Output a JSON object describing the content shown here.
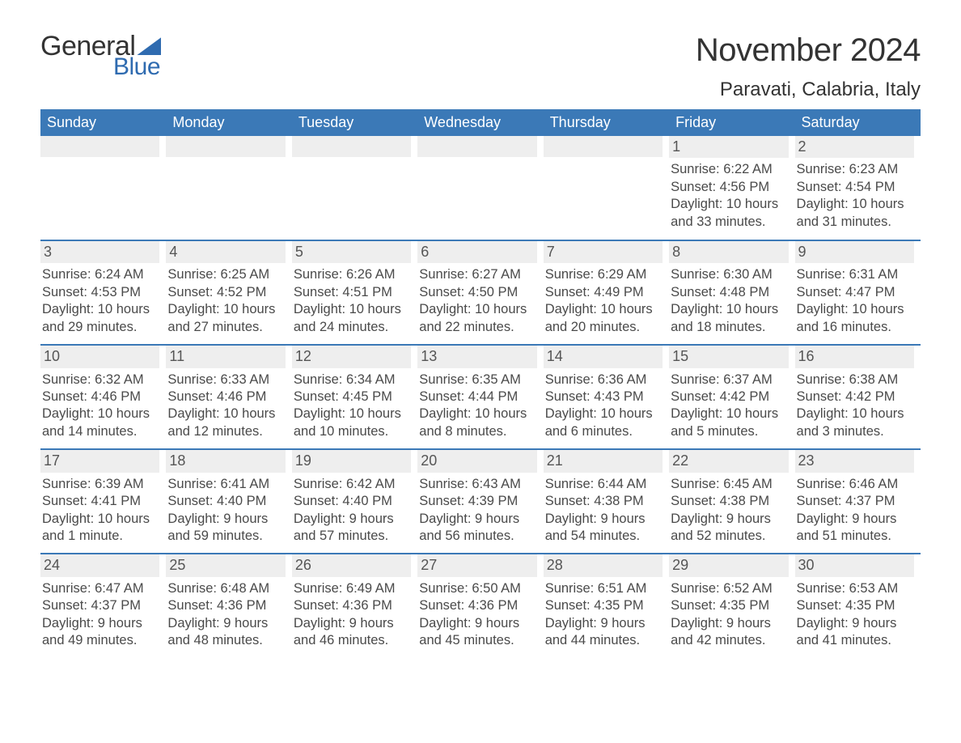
{
  "logo": {
    "word1": "General",
    "word2": "Blue"
  },
  "title": "November 2024",
  "location": "Paravati, Calabria, Italy",
  "colors": {
    "header_bg": "#3b79b7",
    "header_text": "#ffffff",
    "daynum_bg": "#eeeeee",
    "daynum_text": "#555555",
    "body_text": "#4a4a4a",
    "rule": "#3b79b7",
    "logo_blue": "#2f6bb0",
    "page_bg": "#ffffff"
  },
  "day_names": [
    "Sunday",
    "Monday",
    "Tuesday",
    "Wednesday",
    "Thursday",
    "Friday",
    "Saturday"
  ],
  "weeks": [
    [
      {
        "empty": true
      },
      {
        "empty": true
      },
      {
        "empty": true
      },
      {
        "empty": true
      },
      {
        "empty": true
      },
      {
        "day": "1",
        "sunrise": "Sunrise: 6:22 AM",
        "sunset": "Sunset: 4:56 PM",
        "dl1": "Daylight: 10 hours",
        "dl2": "and 33 minutes."
      },
      {
        "day": "2",
        "sunrise": "Sunrise: 6:23 AM",
        "sunset": "Sunset: 4:54 PM",
        "dl1": "Daylight: 10 hours",
        "dl2": "and 31 minutes."
      }
    ],
    [
      {
        "day": "3",
        "sunrise": "Sunrise: 6:24 AM",
        "sunset": "Sunset: 4:53 PM",
        "dl1": "Daylight: 10 hours",
        "dl2": "and 29 minutes."
      },
      {
        "day": "4",
        "sunrise": "Sunrise: 6:25 AM",
        "sunset": "Sunset: 4:52 PM",
        "dl1": "Daylight: 10 hours",
        "dl2": "and 27 minutes."
      },
      {
        "day": "5",
        "sunrise": "Sunrise: 6:26 AM",
        "sunset": "Sunset: 4:51 PM",
        "dl1": "Daylight: 10 hours",
        "dl2": "and 24 minutes."
      },
      {
        "day": "6",
        "sunrise": "Sunrise: 6:27 AM",
        "sunset": "Sunset: 4:50 PM",
        "dl1": "Daylight: 10 hours",
        "dl2": "and 22 minutes."
      },
      {
        "day": "7",
        "sunrise": "Sunrise: 6:29 AM",
        "sunset": "Sunset: 4:49 PM",
        "dl1": "Daylight: 10 hours",
        "dl2": "and 20 minutes."
      },
      {
        "day": "8",
        "sunrise": "Sunrise: 6:30 AM",
        "sunset": "Sunset: 4:48 PM",
        "dl1": "Daylight: 10 hours",
        "dl2": "and 18 minutes."
      },
      {
        "day": "9",
        "sunrise": "Sunrise: 6:31 AM",
        "sunset": "Sunset: 4:47 PM",
        "dl1": "Daylight: 10 hours",
        "dl2": "and 16 minutes."
      }
    ],
    [
      {
        "day": "10",
        "sunrise": "Sunrise: 6:32 AM",
        "sunset": "Sunset: 4:46 PM",
        "dl1": "Daylight: 10 hours",
        "dl2": "and 14 minutes."
      },
      {
        "day": "11",
        "sunrise": "Sunrise: 6:33 AM",
        "sunset": "Sunset: 4:46 PM",
        "dl1": "Daylight: 10 hours",
        "dl2": "and 12 minutes."
      },
      {
        "day": "12",
        "sunrise": "Sunrise: 6:34 AM",
        "sunset": "Sunset: 4:45 PM",
        "dl1": "Daylight: 10 hours",
        "dl2": "and 10 minutes."
      },
      {
        "day": "13",
        "sunrise": "Sunrise: 6:35 AM",
        "sunset": "Sunset: 4:44 PM",
        "dl1": "Daylight: 10 hours",
        "dl2": "and 8 minutes."
      },
      {
        "day": "14",
        "sunrise": "Sunrise: 6:36 AM",
        "sunset": "Sunset: 4:43 PM",
        "dl1": "Daylight: 10 hours",
        "dl2": "and 6 minutes."
      },
      {
        "day": "15",
        "sunrise": "Sunrise: 6:37 AM",
        "sunset": "Sunset: 4:42 PM",
        "dl1": "Daylight: 10 hours",
        "dl2": "and 5 minutes."
      },
      {
        "day": "16",
        "sunrise": "Sunrise: 6:38 AM",
        "sunset": "Sunset: 4:42 PM",
        "dl1": "Daylight: 10 hours",
        "dl2": "and 3 minutes."
      }
    ],
    [
      {
        "day": "17",
        "sunrise": "Sunrise: 6:39 AM",
        "sunset": "Sunset: 4:41 PM",
        "dl1": "Daylight: 10 hours",
        "dl2": "and 1 minute."
      },
      {
        "day": "18",
        "sunrise": "Sunrise: 6:41 AM",
        "sunset": "Sunset: 4:40 PM",
        "dl1": "Daylight: 9 hours",
        "dl2": "and 59 minutes."
      },
      {
        "day": "19",
        "sunrise": "Sunrise: 6:42 AM",
        "sunset": "Sunset: 4:40 PM",
        "dl1": "Daylight: 9 hours",
        "dl2": "and 57 minutes."
      },
      {
        "day": "20",
        "sunrise": "Sunrise: 6:43 AM",
        "sunset": "Sunset: 4:39 PM",
        "dl1": "Daylight: 9 hours",
        "dl2": "and 56 minutes."
      },
      {
        "day": "21",
        "sunrise": "Sunrise: 6:44 AM",
        "sunset": "Sunset: 4:38 PM",
        "dl1": "Daylight: 9 hours",
        "dl2": "and 54 minutes."
      },
      {
        "day": "22",
        "sunrise": "Sunrise: 6:45 AM",
        "sunset": "Sunset: 4:38 PM",
        "dl1": "Daylight: 9 hours",
        "dl2": "and 52 minutes."
      },
      {
        "day": "23",
        "sunrise": "Sunrise: 6:46 AM",
        "sunset": "Sunset: 4:37 PM",
        "dl1": "Daylight: 9 hours",
        "dl2": "and 51 minutes."
      }
    ],
    [
      {
        "day": "24",
        "sunrise": "Sunrise: 6:47 AM",
        "sunset": "Sunset: 4:37 PM",
        "dl1": "Daylight: 9 hours",
        "dl2": "and 49 minutes."
      },
      {
        "day": "25",
        "sunrise": "Sunrise: 6:48 AM",
        "sunset": "Sunset: 4:36 PM",
        "dl1": "Daylight: 9 hours",
        "dl2": "and 48 minutes."
      },
      {
        "day": "26",
        "sunrise": "Sunrise: 6:49 AM",
        "sunset": "Sunset: 4:36 PM",
        "dl1": "Daylight: 9 hours",
        "dl2": "and 46 minutes."
      },
      {
        "day": "27",
        "sunrise": "Sunrise: 6:50 AM",
        "sunset": "Sunset: 4:36 PM",
        "dl1": "Daylight: 9 hours",
        "dl2": "and 45 minutes."
      },
      {
        "day": "28",
        "sunrise": "Sunrise: 6:51 AM",
        "sunset": "Sunset: 4:35 PM",
        "dl1": "Daylight: 9 hours",
        "dl2": "and 44 minutes."
      },
      {
        "day": "29",
        "sunrise": "Sunrise: 6:52 AM",
        "sunset": "Sunset: 4:35 PM",
        "dl1": "Daylight: 9 hours",
        "dl2": "and 42 minutes."
      },
      {
        "day": "30",
        "sunrise": "Sunrise: 6:53 AM",
        "sunset": "Sunset: 4:35 PM",
        "dl1": "Daylight: 9 hours",
        "dl2": "and 41 minutes."
      }
    ]
  ]
}
